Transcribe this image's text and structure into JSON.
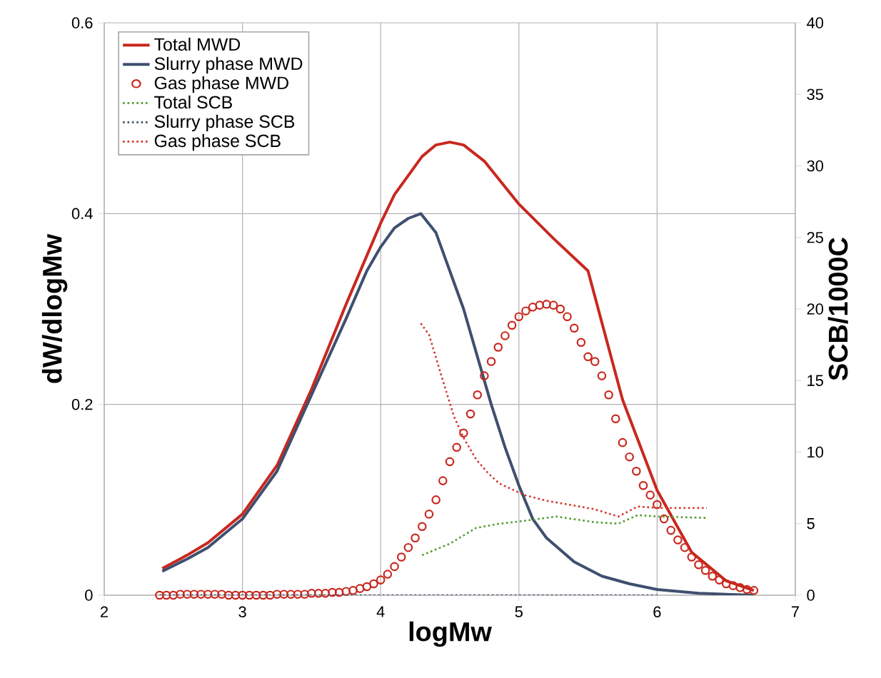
{
  "chart_data": {
    "type": "line",
    "xlabel": "logMw",
    "ylabel": "dW/dlogMw",
    "y2label": "SCB/1000C",
    "xlim": [
      2,
      7
    ],
    "xticks": [
      2,
      3,
      4,
      5,
      6,
      7
    ],
    "ylim": [
      0,
      0.6
    ],
    "yticks": [
      0,
      0.2,
      0.4,
      0.6
    ],
    "y2lim": [
      0,
      40
    ],
    "y2ticks": [
      0,
      5,
      10,
      15,
      20,
      25,
      30,
      35,
      40
    ],
    "grid": true,
    "legend": "top left",
    "series": [
      {
        "name": "Total MWD",
        "color": "#c8281e",
        "line_style": "solid",
        "x": [
          2.42,
          2.6,
          2.75,
          3.0,
          3.25,
          3.5,
          3.75,
          4.0,
          4.1,
          4.2,
          4.3,
          4.4,
          4.5,
          4.6,
          4.75,
          5.0,
          5.25,
          5.5,
          5.75,
          6.0,
          6.25,
          6.5,
          6.7
        ],
        "values": [
          0.028,
          0.042,
          0.055,
          0.085,
          0.136,
          0.216,
          0.305,
          0.39,
          0.42,
          0.44,
          0.46,
          0.472,
          0.475,
          0.472,
          0.455,
          0.41,
          0.374,
          0.34,
          0.205,
          0.11,
          0.045,
          0.015,
          0.005
        ]
      },
      {
        "name": "Slurry phase MWD",
        "color": "#3f4f6f",
        "line_style": "solid",
        "x": [
          2.42,
          2.6,
          2.75,
          3.0,
          3.25,
          3.5,
          3.75,
          3.9,
          4.0,
          4.1,
          4.2,
          4.29,
          4.4,
          4.5,
          4.6,
          4.7,
          4.8,
          4.9,
          5.0,
          5.1,
          5.2,
          5.4,
          5.6,
          5.8,
          6.0,
          6.3,
          6.7
        ],
        "values": [
          0.025,
          0.038,
          0.05,
          0.08,
          0.13,
          0.21,
          0.29,
          0.34,
          0.365,
          0.385,
          0.395,
          0.4,
          0.38,
          0.34,
          0.3,
          0.25,
          0.2,
          0.155,
          0.115,
          0.08,
          0.06,
          0.035,
          0.02,
          0.012,
          0.006,
          0.002,
          0
        ]
      },
      {
        "name": "Gas phase MWD",
        "color": "#c8281e",
        "type": "scatter",
        "marker": "circle",
        "x": [
          2.4,
          2.45,
          2.5,
          2.55,
          2.6,
          2.65,
          2.7,
          2.75,
          2.8,
          2.85,
          2.9,
          2.95,
          3.0,
          3.05,
          3.1,
          3.15,
          3.2,
          3.25,
          3.3,
          3.35,
          3.4,
          3.45,
          3.5,
          3.55,
          3.6,
          3.65,
          3.7,
          3.75,
          3.8,
          3.85,
          3.9,
          3.95,
          4.0,
          4.05,
          4.1,
          4.15,
          4.2,
          4.25,
          4.3,
          4.35,
          4.4,
          4.45,
          4.5,
          4.55,
          4.6,
          4.65,
          4.7,
          4.75,
          4.8,
          4.85,
          4.9,
          4.95,
          5.0,
          5.05,
          5.1,
          5.15,
          5.2,
          5.25,
          5.3,
          5.35,
          5.4,
          5.45,
          5.5,
          5.55,
          5.6,
          5.65,
          5.7,
          5.75,
          5.8,
          5.85,
          5.9,
          5.95,
          6.0,
          6.05,
          6.1,
          6.15,
          6.2,
          6.25,
          6.3,
          6.35,
          6.4,
          6.45,
          6.5,
          6.55,
          6.6,
          6.65,
          6.7
        ],
        "values": [
          0,
          0,
          0,
          0.001,
          0.001,
          0.001,
          0.001,
          0.001,
          0.001,
          0.001,
          0,
          0,
          0,
          0,
          0,
          0,
          0,
          0.001,
          0.001,
          0.001,
          0.001,
          0.001,
          0.002,
          0.002,
          0.002,
          0.003,
          0.003,
          0.004,
          0.005,
          0.007,
          0.009,
          0.012,
          0.016,
          0.022,
          0.03,
          0.04,
          0.05,
          0.06,
          0.072,
          0.085,
          0.1,
          0.12,
          0.14,
          0.155,
          0.17,
          0.19,
          0.21,
          0.23,
          0.245,
          0.26,
          0.272,
          0.283,
          0.292,
          0.298,
          0.302,
          0.304,
          0.305,
          0.304,
          0.3,
          0.292,
          0.28,
          0.265,
          0.25,
          0.245,
          0.23,
          0.21,
          0.185,
          0.16,
          0.145,
          0.13,
          0.115,
          0.105,
          0.095,
          0.08,
          0.068,
          0.058,
          0.05,
          0.04,
          0.032,
          0.026,
          0.02,
          0.016,
          0.012,
          0.01,
          0.008,
          0.006,
          0.005
        ]
      },
      {
        "name": "Total SCB",
        "color": "#4e9a2e",
        "line_style": "dotted",
        "axis": "y2",
        "x": [
          4.3,
          4.35,
          4.5,
          4.69,
          4.86,
          5.04,
          5.27,
          5.55,
          5.72,
          5.86,
          6.0,
          6.36
        ],
        "values": [
          2.8,
          3.0,
          3.6,
          4.7,
          5.0,
          5.2,
          5.5,
          5.1,
          5.0,
          5.6,
          5.5,
          5.4
        ]
      },
      {
        "name": "Slurry phase SCB",
        "color": "#3f4f6f",
        "line_style": "dotted",
        "axis": "y2",
        "x": [
          2.4,
          3.0,
          4.0,
          5.0,
          6.0
        ],
        "values": [
          0,
          0,
          0,
          0,
          0
        ]
      },
      {
        "name": "Gas phase SCB",
        "color": "#d0352b",
        "line_style": "dotted",
        "axis": "y2",
        "x": [
          4.29,
          4.35,
          4.45,
          4.53,
          4.6,
          4.69,
          4.78,
          4.86,
          5.04,
          5.2,
          5.38,
          5.55,
          5.72,
          5.86,
          6.0,
          6.36
        ],
        "values": [
          19.0,
          18.2,
          15.0,
          12.5,
          11.0,
          9.5,
          8.5,
          7.8,
          7.0,
          6.6,
          6.3,
          6.0,
          5.5,
          6.2,
          6.1,
          6.1
        ]
      }
    ]
  }
}
